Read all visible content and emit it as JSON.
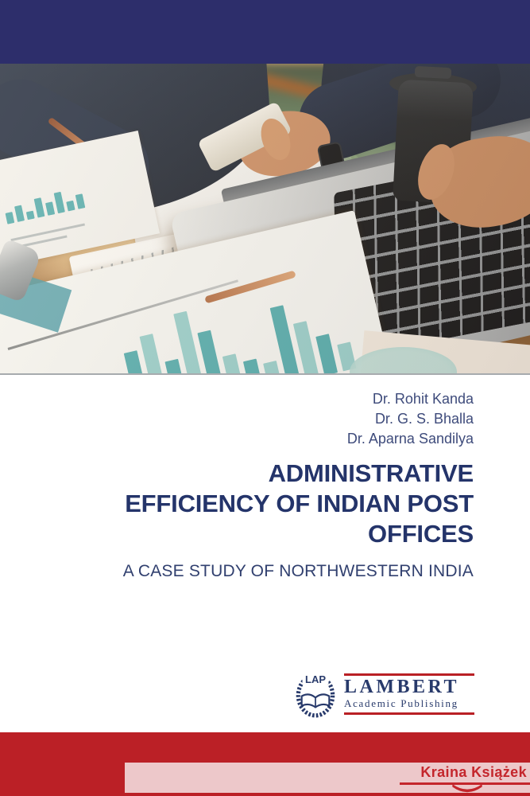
{
  "cover": {
    "authors": [
      "Dr. Rohit Kanda",
      "Dr. G. S. Bhalla",
      "Dr. Aparna Sandilya"
    ],
    "title": "ADMINISTRATIVE EFFICIENCY OF INDIAN POST OFFICES",
    "title_lines": [
      "ADMINISTRATIVE",
      "EFFICIENCY OF INDIAN POST",
      "OFFICES"
    ],
    "subtitle": "A CASE STUDY OF NORTHWESTERN INDIA"
  },
  "publisher": {
    "emblem_acronym": "LAP",
    "name": "LAMBERT",
    "tagline": "Academic Publishing"
  },
  "watermark": {
    "text": "Kraina Książek"
  },
  "photo": {
    "description": "Two businesspeople at a wooden desk reviewing printed teal bar and pie charts, with laptop, smartphone, pen and takeaway coffee cup",
    "bar_chart_heights": [
      72,
      30,
      56,
      24,
      44,
      20,
      84,
      100,
      62,
      118,
      88,
      52,
      40,
      32,
      98,
      72,
      50,
      34
    ],
    "mini_bar_heights": [
      14,
      20,
      10,
      24,
      16,
      26,
      12,
      18
    ]
  },
  "colors": {
    "top_bar_navy": "#2D2E6B",
    "title_navy": "#24346A",
    "author_navy": "#3E4B7B",
    "publisher_navy": "#283A6B",
    "accent_red": "#BB2026",
    "watermark_pink": "#EDC8CA",
    "watermark_red": "#C4262C",
    "chart_teal": "#5FB5BA"
  }
}
